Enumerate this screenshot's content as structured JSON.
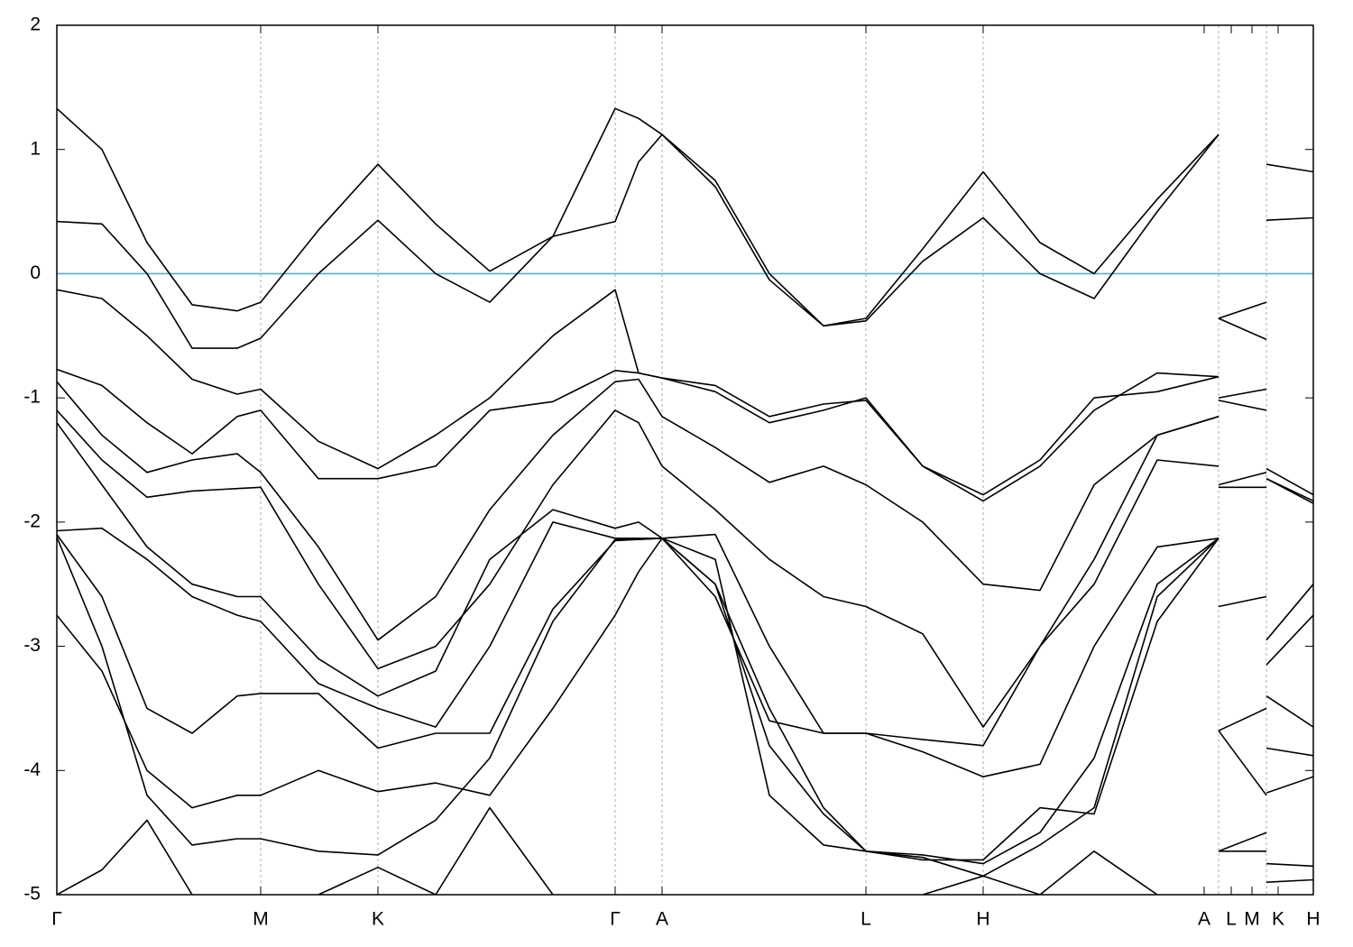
{
  "chart_data": {
    "type": "line",
    "xlim": [
      0,
      13.93
    ],
    "ylim": [
      -5,
      2
    ],
    "yticks": [
      2,
      1,
      0,
      -1,
      -2,
      -3,
      -4,
      -5
    ],
    "xticks": [
      {
        "value": 0,
        "label": "Γ"
      },
      {
        "value": 2.26,
        "label": "M"
      },
      {
        "value": 3.56,
        "label": "K"
      },
      {
        "value": 6.19,
        "label": "Γ"
      },
      {
        "value": 6.71,
        "label": "A"
      },
      {
        "value": 8.97,
        "label": "L"
      },
      {
        "value": 10.27,
        "label": "H"
      },
      {
        "value": 12.72,
        "label": "A"
      },
      {
        "value": 13.02,
        "label": "L"
      },
      {
        "value": 13.25,
        "label": "M"
      },
      {
        "value": 13.54,
        "label": "K"
      },
      {
        "value": 13.93,
        "label": "H"
      }
    ],
    "grid_x": [
      2.26,
      3.56,
      6.19,
      6.71,
      8.97,
      10.27,
      12.88,
      13.41
    ],
    "fermi_level": 0,
    "fermi_color": "#5aabc8",
    "color": "#000000",
    "x": [
      0,
      0.5,
      1.0,
      1.5,
      2.0,
      2.26,
      2.9,
      3.56,
      4.2,
      4.8,
      5.5,
      6.19,
      6.45,
      6.71,
      7.3,
      7.9,
      8.5,
      8.97,
      9.6,
      10.27,
      10.9,
      11.5,
      12.2,
      12.88,
      12.88,
      12.88,
      13.41,
      13.41,
      13.41,
      13.93
    ],
    "series": [
      {
        "values": [
          1.33,
          1.0,
          0.25,
          -0.25,
          -0.3,
          -0.23,
          0.35,
          0.88,
          0.4,
          0.02,
          0.3,
          1.33,
          1.25,
          1.12,
          0.75,
          0.0,
          -0.42,
          -0.36,
          0.2,
          0.82,
          0.25,
          0.0,
          0.6,
          1.12,
          null,
          -0.36,
          -0.23,
          null,
          0.88,
          0.82
        ]
      },
      {
        "values": [
          0.42,
          0.4,
          0.0,
          -0.6,
          -0.6,
          -0.52,
          0.0,
          0.43,
          0.0,
          -0.23,
          0.3,
          0.42,
          0.9,
          1.12,
          0.7,
          -0.05,
          -0.42,
          -0.38,
          0.1,
          0.45,
          0.0,
          -0.2,
          0.5,
          1.12,
          null,
          -0.36,
          -0.53,
          null,
          0.43,
          0.45
        ]
      },
      {
        "values": [
          -0.13,
          -0.2,
          -0.5,
          -0.85,
          -0.97,
          -0.93,
          -1.35,
          -1.57,
          -1.3,
          -1.0,
          -0.5,
          -0.13,
          -0.8,
          -0.84,
          -0.95,
          -1.2,
          -1.1,
          -1.0,
          -1.55,
          -1.78,
          -1.5,
          -1.0,
          -0.95,
          -0.83,
          null,
          -1.02,
          -1.1,
          null,
          -1.57,
          -1.78
        ]
      },
      {
        "values": [
          -0.77,
          -0.9,
          -1.2,
          -1.45,
          -1.15,
          -1.1,
          -1.65,
          -1.65,
          -1.55,
          -1.1,
          -1.03,
          -0.78,
          -0.8,
          -0.84,
          -0.9,
          -1.15,
          -1.05,
          -1.02,
          -1.55,
          -1.83,
          -1.55,
          -1.1,
          -0.8,
          -0.83,
          null,
          -1.0,
          -0.93,
          null,
          -1.65,
          -1.83
        ]
      },
      {
        "values": [
          -0.87,
          -1.3,
          -1.6,
          -1.5,
          -1.45,
          -1.6,
          -2.2,
          -2.95,
          -2.6,
          -1.9,
          -1.3,
          -0.87,
          -0.85,
          -1.15,
          -1.4,
          -1.68,
          -1.55,
          -1.7,
          -2.0,
          -2.5,
          -2.55,
          -1.7,
          -1.3,
          -1.15,
          null,
          -1.7,
          -1.6,
          null,
          -1.65,
          -1.85
        ]
      },
      {
        "values": [
          -1.1,
          -1.5,
          -1.8,
          -1.75,
          -1.73,
          -1.72,
          -2.5,
          -3.18,
          -3.0,
          -2.5,
          -1.7,
          -1.1,
          -1.2,
          -1.55,
          -1.9,
          -2.3,
          -2.6,
          -2.68,
          -2.9,
          -3.65,
          -3.0,
          -2.3,
          -1.3,
          -1.15,
          null,
          -1.72,
          -1.72,
          null,
          -2.95,
          -2.5
        ]
      },
      {
        "values": [
          -1.2,
          -1.7,
          -2.2,
          -2.5,
          -2.6,
          -2.6,
          -3.1,
          -3.4,
          -3.2,
          -2.3,
          -1.9,
          -2.05,
          -2.0,
          -2.13,
          -2.1,
          -3.0,
          -3.7,
          -3.7,
          -3.75,
          -3.8,
          -3.0,
          -2.5,
          -1.5,
          -1.55,
          null,
          -2.68,
          -2.6,
          null,
          -3.15,
          -2.75
        ]
      },
      {
        "values": [
          -2.07,
          -2.05,
          -2.3,
          -2.6,
          -2.75,
          -2.8,
          -3.3,
          -3.5,
          -3.65,
          -3.0,
          -2.0,
          -2.13,
          -2.13,
          -2.13,
          -2.5,
          -3.5,
          -4.3,
          -4.65,
          -4.68,
          -4.75,
          -4.5,
          -3.9,
          -2.5,
          -2.13,
          null,
          -3.68,
          -4.2,
          null,
          -3.82,
          -3.88
        ]
      },
      {
        "values": [
          -2.1,
          -2.6,
          -3.5,
          -3.7,
          -3.4,
          -3.38,
          -3.38,
          -3.82,
          -3.7,
          -3.7,
          -2.7,
          -2.15,
          -2.14,
          -2.13,
          -2.6,
          -3.6,
          -3.7,
          -3.7,
          -3.85,
          -4.05,
          -3.95,
          -3.0,
          -2.2,
          -2.13,
          null,
          -3.68,
          -3.5,
          null,
          -3.4,
          -3.65
        ]
      },
      {
        "values": [
          -2.75,
          -3.2,
          -4.0,
          -4.3,
          -4.2,
          -4.2,
          -4.0,
          -4.17,
          -4.1,
          -4.2,
          -3.5,
          -2.75,
          -2.4,
          -2.13,
          -2.5,
          -3.8,
          -4.35,
          -4.65,
          -4.7,
          -4.85,
          -4.6,
          -4.3,
          -2.6,
          -2.13,
          null,
          -4.65,
          -4.5,
          null,
          -4.18,
          -4.05
        ]
      },
      {
        "values": [
          -2.12,
          -3.0,
          -4.2,
          -4.6,
          -4.55,
          -4.55,
          -4.65,
          -4.68,
          -4.4,
          -3.9,
          -2.8,
          -2.14,
          -2.14,
          -2.13,
          -2.3,
          -4.2,
          -4.6,
          -4.65,
          -4.72,
          -4.72,
          -4.3,
          -4.35,
          -2.8,
          -2.13,
          null,
          -4.65,
          -4.65,
          null,
          -4.75,
          -4.77
        ]
      },
      {
        "values": [
          -5.0,
          -4.8,
          -4.4,
          -5.0,
          null,
          null,
          -5.0,
          -4.78,
          -5.0,
          -4.3,
          -5.0,
          null,
          null,
          null,
          null,
          null,
          null,
          null,
          -5.0,
          -4.85,
          -5.0,
          -4.65,
          -5.0,
          null,
          null,
          null,
          null,
          null,
          -4.9,
          -4.88
        ]
      }
    ]
  }
}
